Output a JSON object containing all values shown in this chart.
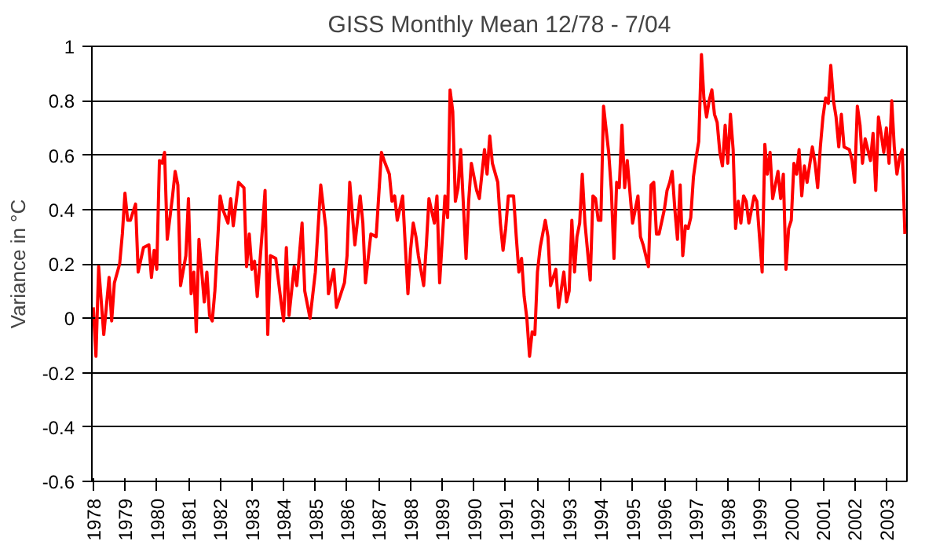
{
  "chart_data": {
    "type": "line",
    "title": "GISS Monthly Mean 12/78 - 7/04",
    "ylabel": "Variance in °C",
    "x": [
      "1978-12",
      "1979-01",
      "1979-02",
      "1979-04",
      "1979-06",
      "1979-07",
      "1979-08",
      "1979-10",
      "1979-11",
      "1979-12",
      "1980-01",
      "1980-02",
      "1980-04",
      "1980-05",
      "1980-07",
      "1980-09",
      "1980-10",
      "1980-11",
      "1980-12",
      "1981-01",
      "1981-02",
      "1981-03",
      "1981-04",
      "1981-06",
      "1981-07",
      "1981-08",
      "1981-09",
      "1981-11",
      "1981-12",
      "1982-01",
      "1982-02",
      "1982-03",
      "1982-04",
      "1982-06",
      "1982-07",
      "1982-08",
      "1982-09",
      "1982-10",
      "1982-12",
      "1983-01",
      "1983-03",
      "1983-04",
      "1983-05",
      "1983-07",
      "1983-09",
      "1983-10",
      "1983-11",
      "1983-12",
      "1984-01",
      "1984-02",
      "1984-04",
      "1984-05",
      "1984-06",
      "1984-07",
      "1984-09",
      "1984-11",
      "1984-12",
      "1985-01",
      "1985-02",
      "1985-04",
      "1985-05",
      "1985-07",
      "1985-08",
      "1985-10",
      "1985-12",
      "1986-02",
      "1986-04",
      "1986-05",
      "1986-07",
      "1986-08",
      "1986-11",
      "1986-12",
      "1987-01",
      "1987-03",
      "1987-05",
      "1987-06",
      "1987-07",
      "1987-09",
      "1987-11",
      "1988-01",
      "1988-02",
      "1988-04",
      "1988-05",
      "1988-06",
      "1988-07",
      "1988-09",
      "1988-10",
      "1988-11",
      "1988-12",
      "1989-01",
      "1989-02",
      "1989-03",
      "1989-05",
      "1989-06",
      "1989-07",
      "1989-09",
      "1989-10",
      "1989-11",
      "1990-01",
      "1990-02",
      "1990-03",
      "1990-04",
      "1990-05",
      "1990-06",
      "1990-07",
      "1990-09",
      "1990-10",
      "1990-11",
      "1991-01",
      "1991-02",
      "1991-04",
      "1991-05",
      "1991-06",
      "1991-07",
      "1991-09",
      "1991-10",
      "1991-11",
      "1991-12",
      "1992-01",
      "1992-03",
      "1992-04",
      "1992-05",
      "1992-06",
      "1992-07",
      "1992-08",
      "1992-09",
      "1992-10",
      "1992-11",
      "1992-12",
      "1993-01",
      "1993-03",
      "1993-04",
      "1993-05",
      "1993-07",
      "1993-08",
      "1993-10",
      "1993-11",
      "1993-12",
      "1994-01",
      "1994-02",
      "1994-03",
      "1994-04",
      "1994-05",
      "1994-06",
      "1994-08",
      "1994-09",
      "1994-10",
      "1994-11",
      "1994-12",
      "1995-01",
      "1995-03",
      "1995-04",
      "1995-05",
      "1995-06",
      "1995-07",
      "1995-08",
      "1995-09",
      "1995-10",
      "1995-12",
      "1996-01",
      "1996-02",
      "1996-03",
      "1996-04",
      "1996-06",
      "1996-07",
      "1996-08",
      "1996-09",
      "1996-10",
      "1996-12",
      "1997-01",
      "1997-02",
      "1997-03",
      "1997-04",
      "1997-05",
      "1997-06",
      "1997-07",
      "1997-08",
      "1997-09",
      "1997-10",
      "1997-11",
      "1997-12",
      "1998-01",
      "1998-02",
      "1998-03",
      "1998-04",
      "1998-05",
      "1998-06",
      "1998-07",
      "1998-08",
      "1998-09",
      "1998-10",
      "1998-11",
      "1998-12",
      "1999-01",
      "1999-02",
      "1999-03",
      "1999-04",
      "1999-05",
      "1999-06",
      "1999-07",
      "1999-08",
      "1999-10",
      "1999-11",
      "2000-01",
      "2000-02",
      "2000-03",
      "2000-04",
      "2000-05",
      "2000-07",
      "2000-08",
      "2000-09",
      "2000-10",
      "2000-11",
      "2000-12",
      "2001-01",
      "2001-02",
      "2001-03",
      "2001-04",
      "2001-05",
      "2001-06",
      "2001-08",
      "2001-09",
      "2001-10",
      "2001-11",
      "2001-12",
      "2002-01",
      "2002-02",
      "2002-03",
      "2002-04",
      "2002-05",
      "2002-06",
      "2002-07",
      "2002-08",
      "2002-10",
      "2002-11",
      "2002-12",
      "2003-01",
      "2003-02",
      "2003-03",
      "2003-04",
      "2003-06",
      "2003-07",
      "2003-08",
      "2003-09",
      "2003-10",
      "2003-11",
      "2003-12",
      "2004-01",
      "2004-02",
      "2004-03",
      "2004-04",
      "2004-05",
      "2004-06",
      "2004-07"
    ],
    "series": [
      {
        "color": "#ff0000",
        "values": [
          0.04,
          -0.14,
          0.19,
          -0.06,
          0.15,
          -0.01,
          0.13,
          0.2,
          0.31,
          0.46,
          0.36,
          0.36,
          0.42,
          0.17,
          0.26,
          0.27,
          0.15,
          0.25,
          0.18,
          0.58,
          0.57,
          0.61,
          0.29,
          0.45,
          0.54,
          0.49,
          0.12,
          0.23,
          0.44,
          0.09,
          0.17,
          -0.05,
          0.29,
          0.06,
          0.17,
          0.01,
          -0.01,
          0.1,
          0.45,
          0.4,
          0.35,
          0.44,
          0.34,
          0.5,
          0.48,
          0.19,
          0.31,
          0.18,
          0.21,
          0.08,
          0.33,
          0.47,
          -0.06,
          0.23,
          0.22,
          0.06,
          -0.01,
          0.26,
          0.01,
          0.19,
          0.12,
          0.35,
          0.1,
          0.0,
          0.17,
          0.49,
          0.33,
          0.09,
          0.18,
          0.04,
          0.13,
          0.23,
          0.5,
          0.27,
          0.45,
          0.35,
          0.13,
          0.31,
          0.3,
          0.61,
          0.58,
          0.53,
          0.43,
          0.45,
          0.36,
          0.45,
          0.27,
          0.09,
          0.25,
          0.35,
          0.3,
          0.23,
          0.12,
          0.27,
          0.44,
          0.35,
          0.45,
          0.13,
          0.45,
          0.37,
          0.84,
          0.76,
          0.43,
          0.48,
          0.62,
          0.22,
          0.43,
          0.57,
          0.47,
          0.44,
          0.62,
          0.53,
          0.67,
          0.57,
          0.5,
          0.35,
          0.25,
          0.33,
          0.45,
          0.45,
          0.3,
          0.17,
          0.22,
          0.08,
          0.0,
          -0.14,
          -0.05,
          -0.06,
          0.17,
          0.26,
          0.36,
          0.3,
          0.12,
          0.18,
          0.04,
          0.17,
          0.06,
          0.1,
          0.36,
          0.17,
          0.3,
          0.35,
          0.53,
          0.35,
          0.14,
          0.45,
          0.44,
          0.36,
          0.36,
          0.78,
          0.61,
          0.47,
          0.22,
          0.5,
          0.48,
          0.71,
          0.48,
          0.58,
          0.35,
          0.4,
          0.45,
          0.3,
          0.27,
          0.19,
          0.49,
          0.5,
          0.31,
          0.31,
          0.4,
          0.47,
          0.5,
          0.54,
          0.4,
          0.29,
          0.49,
          0.23,
          0.34,
          0.33,
          0.37,
          0.52,
          0.59,
          0.65,
          0.97,
          0.81,
          0.74,
          0.8,
          0.84,
          0.75,
          0.72,
          0.61,
          0.56,
          0.71,
          0.57,
          0.75,
          0.62,
          0.33,
          0.43,
          0.35,
          0.45,
          0.43,
          0.35,
          0.45,
          0.43,
          0.17,
          0.64,
          0.53,
          0.61,
          0.44,
          0.54,
          0.44,
          0.53,
          0.18,
          0.33,
          0.36,
          0.57,
          0.53,
          0.62,
          0.45,
          0.56,
          0.5,
          0.63,
          0.57,
          0.48,
          0.63,
          0.74,
          0.81,
          0.79,
          0.93,
          0.8,
          0.74,
          0.63,
          0.75,
          0.63,
          0.62,
          0.58,
          0.5,
          0.78,
          0.71,
          0.57,
          0.66,
          0.58,
          0.68,
          0.47,
          0.74,
          0.68,
          0.61,
          0.7,
          0.57,
          0.8,
          0.63,
          0.53,
          0.59,
          0.62,
          0.31
        ]
      }
    ],
    "xlim": [
      "1978-11-15",
      "2004-07-25"
    ],
    "ylim": [
      -0.6,
      1
    ],
    "xticks": [
      {
        "value": "1978-12",
        "label": "1978"
      },
      {
        "value": "1979-12",
        "label": "1979"
      },
      {
        "value": "1980-12",
        "label": "1980"
      },
      {
        "value": "1981-12",
        "label": "1981"
      },
      {
        "value": "1982-12",
        "label": "1982"
      },
      {
        "value": "1983-12",
        "label": "1983"
      },
      {
        "value": "1984-12",
        "label": "1984"
      },
      {
        "value": "1985-12",
        "label": "1985"
      },
      {
        "value": "1986-12",
        "label": "1986"
      },
      {
        "value": "1987-12",
        "label": "1987"
      },
      {
        "value": "1988-12",
        "label": "1988"
      },
      {
        "value": "1989-12",
        "label": "1989"
      },
      {
        "value": "1990-12",
        "label": "1990"
      },
      {
        "value": "1991-12",
        "label": "1991"
      },
      {
        "value": "1992-12",
        "label": "1992"
      },
      {
        "value": "1993-12",
        "label": "1993"
      },
      {
        "value": "1994-12",
        "label": "1994"
      },
      {
        "value": "1995-12",
        "label": "1995"
      },
      {
        "value": "1996-12",
        "label": "1996"
      },
      {
        "value": "1997-12",
        "label": "1997"
      },
      {
        "value": "1998-12",
        "label": "1998"
      },
      {
        "value": "1999-12",
        "label": "1999"
      },
      {
        "value": "2000-12",
        "label": "2000"
      },
      {
        "value": "2001-12",
        "label": "2001"
      },
      {
        "value": "2002-12",
        "label": "2002"
      },
      {
        "value": "2003-12",
        "label": "2003"
      }
    ],
    "yticks": [
      -0.6,
      -0.4,
      -0.2,
      0,
      0.2,
      0.4,
      0.6,
      0.8,
      1
    ],
    "grid": "y",
    "line_style": "solid"
  }
}
